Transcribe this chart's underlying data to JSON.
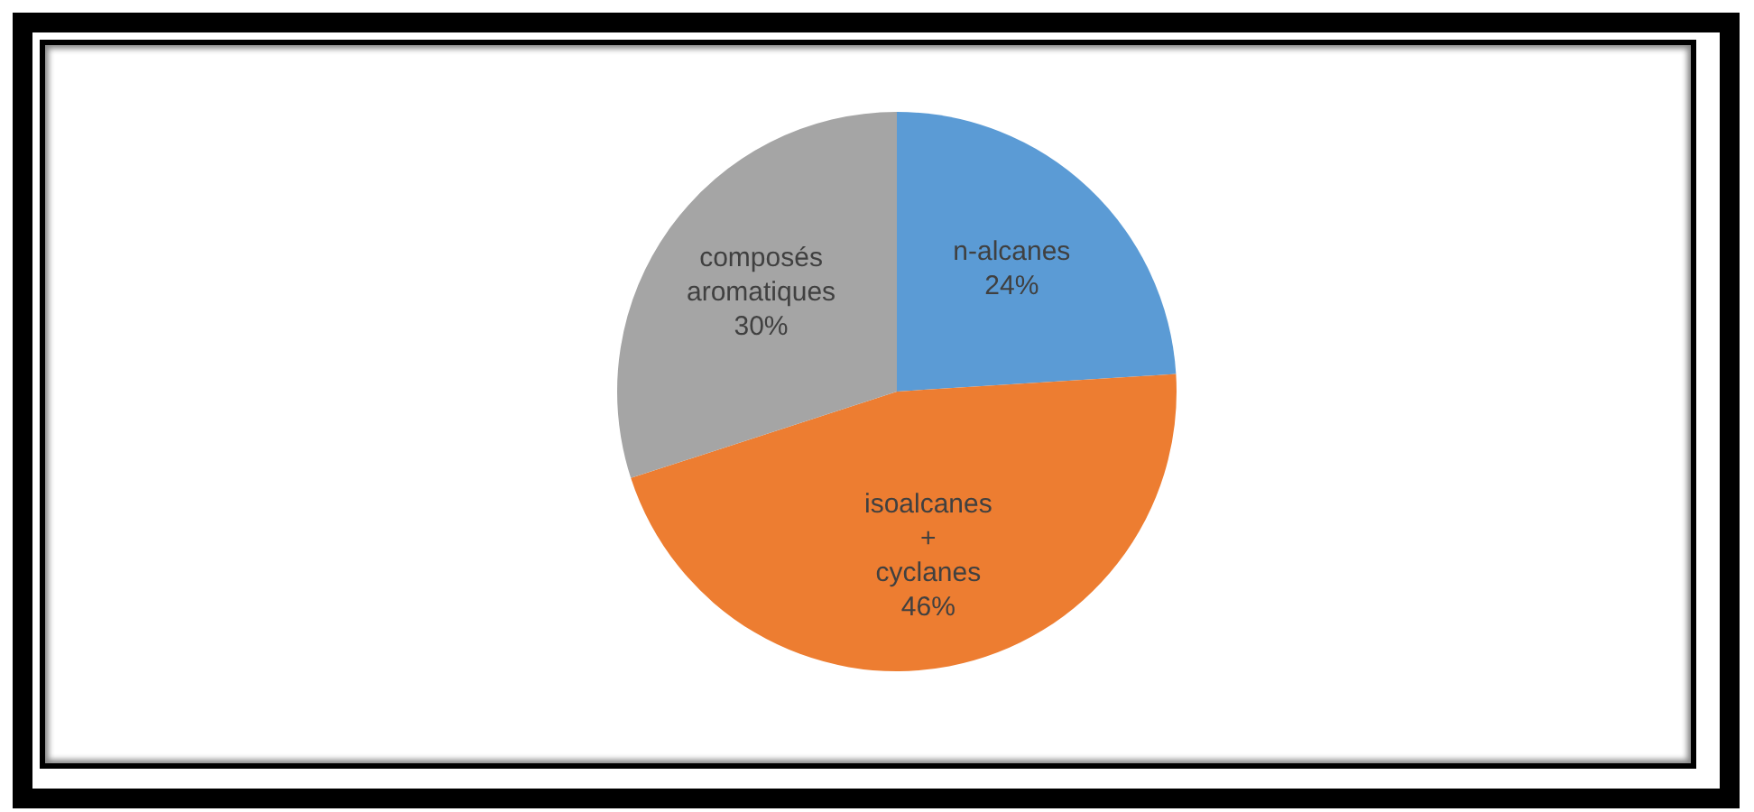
{
  "chart_data": {
    "type": "pie",
    "categories": [
      "n-alcanes",
      "isoalcanes + cyclanes",
      "composés aromatiques"
    ],
    "values": [
      24,
      46,
      30
    ],
    "value_labels": [
      "24%",
      "46%",
      "30%"
    ],
    "colors": [
      "#5b9bd5",
      "#ed7d31",
      "#a5a5a5"
    ],
    "legend": false
  }
}
